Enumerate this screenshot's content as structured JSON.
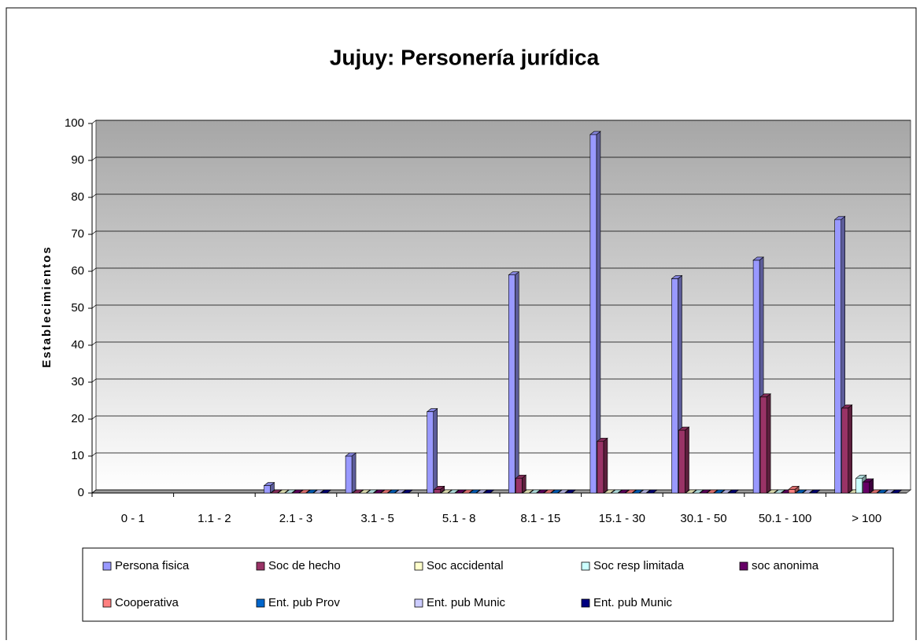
{
  "chart_data": {
    "type": "bar3d",
    "title": "Jujuy: Personería jurídica",
    "ylabel": "Establecimientos",
    "categories": [
      "0 - 1",
      "1.1 - 2",
      "2.1 - 3",
      "3.1 - 5",
      "5.1 - 8",
      "8.1 - 15",
      "15.1 - 30",
      "30.1 - 50",
      "50.1 - 100",
      "> 100"
    ],
    "series": [
      {
        "name": "Persona fisica",
        "color": "#9999ff",
        "values": [
          null,
          null,
          2,
          10,
          22,
          59,
          97,
          58,
          63,
          74
        ]
      },
      {
        "name": "Soc de hecho",
        "color": "#993366",
        "values": [
          null,
          null,
          0,
          0,
          1,
          4,
          14,
          17,
          26,
          23
        ]
      },
      {
        "name": "Soc accidental",
        "color": "#ffffcc",
        "values": [
          null,
          null,
          0,
          0,
          0,
          0,
          0,
          0,
          0,
          0
        ]
      },
      {
        "name": "Soc resp limitada",
        "color": "#ccffff",
        "values": [
          null,
          null,
          0,
          0,
          0,
          0,
          0,
          0,
          0,
          4
        ]
      },
      {
        "name": "soc anonima",
        "color": "#660066",
        "values": [
          null,
          null,
          0,
          0,
          0,
          0,
          0,
          0,
          0,
          3
        ]
      },
      {
        "name": "Cooperativa",
        "color": "#ff8080",
        "values": [
          null,
          null,
          0,
          0,
          0,
          0,
          0,
          0,
          1,
          0
        ]
      },
      {
        "name": "Ent. pub Prov",
        "color": "#0066cc",
        "values": [
          null,
          null,
          0,
          0,
          0,
          0,
          0,
          0,
          0,
          0
        ]
      },
      {
        "name": "Ent. pub Munic",
        "color": "#ccccff",
        "values": [
          null,
          null,
          0,
          0,
          0,
          0,
          0,
          0,
          0,
          0
        ]
      },
      {
        "name": "Ent. pub Munic",
        "color": "#000080",
        "values": [
          null,
          null,
          0,
          0,
          0,
          0,
          0,
          0,
          0,
          0
        ]
      }
    ],
    "ylim": [
      0,
      100
    ],
    "yticks": [
      0,
      10,
      20,
      30,
      40,
      50,
      60,
      70,
      80,
      90,
      100
    ],
    "grid": true,
    "legend": "bottom"
  }
}
